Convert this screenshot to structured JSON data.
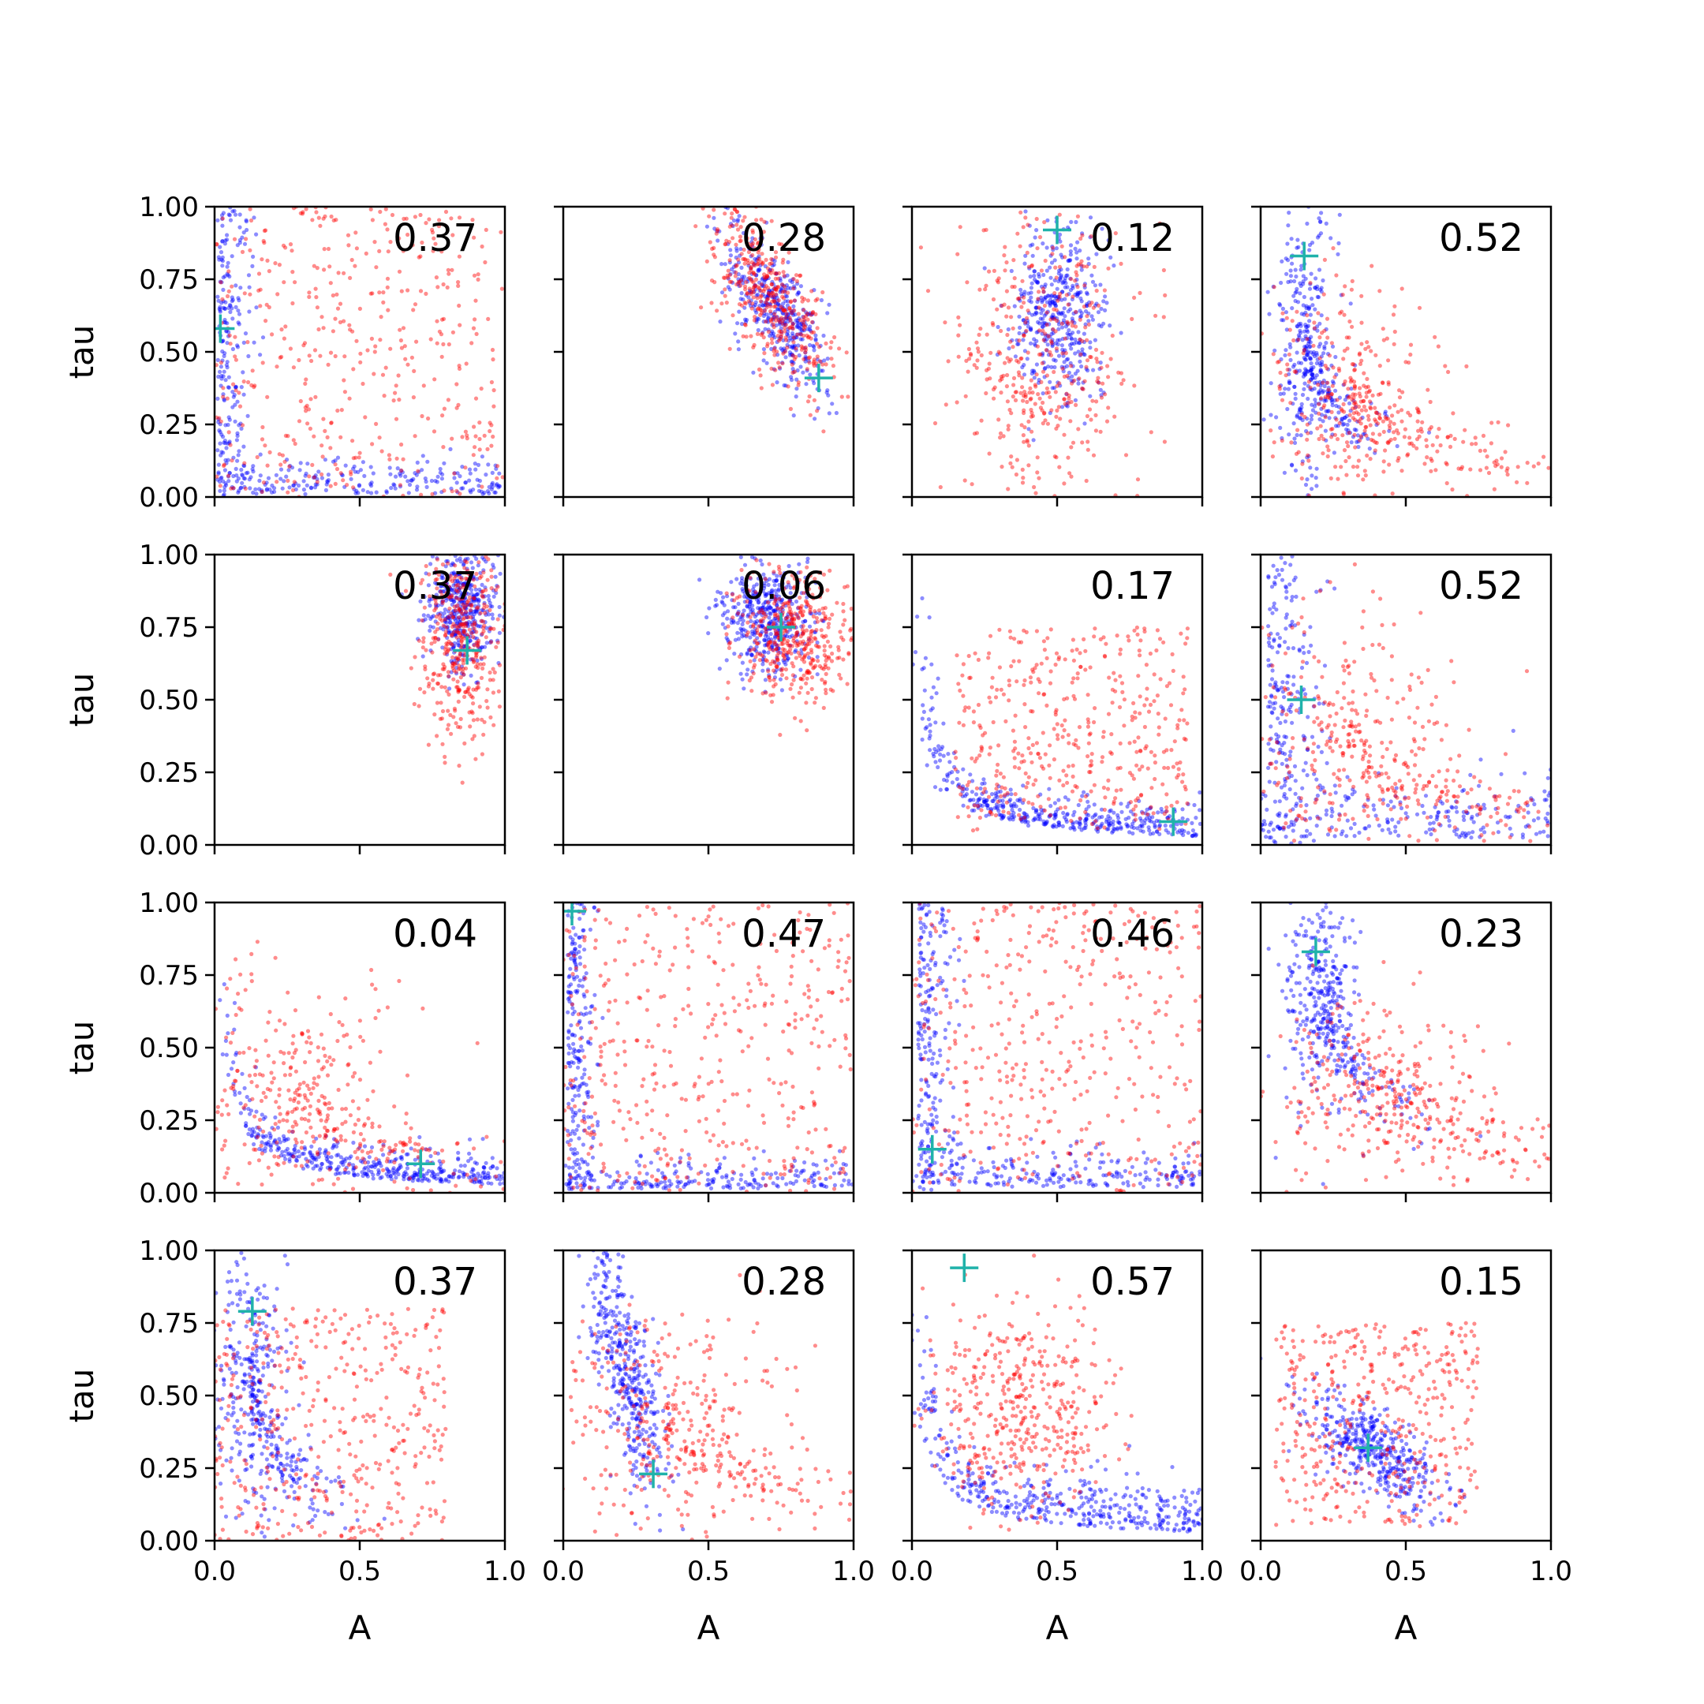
{
  "figure": {
    "x_label": "A",
    "y_label": "tau",
    "x_ticks": [
      "0.0",
      "0.5",
      "1.0"
    ],
    "y_ticks": [
      "0.00",
      "0.25",
      "0.50",
      "0.75",
      "1.00"
    ],
    "colors": {
      "series_a": "#0000ff",
      "series_b": "#ff0000",
      "marker": "#20b2aa"
    }
  },
  "chart_data": [
    {
      "type": "scatter",
      "row": 0,
      "col": 0,
      "annotation": "0.37",
      "xlim": [
        0,
        1
      ],
      "ylim": [
        0,
        1
      ],
      "marker": {
        "x": 0.02,
        "y": 0.58
      },
      "series": [
        {
          "color": "#0000ff",
          "shape": "L",
          "center": [
            0.02,
            0.02
          ],
          "spread": [
            0.06,
            0.06
          ]
        },
        {
          "color": "#ff0000",
          "shape": "uniform",
          "center": [
            0.5,
            0.5
          ],
          "spread": [
            0.5,
            0.5
          ]
        }
      ]
    },
    {
      "type": "scatter",
      "row": 0,
      "col": 1,
      "annotation": "0.28",
      "xlim": [
        0,
        1
      ],
      "ylim": [
        0,
        1
      ],
      "marker": {
        "x": 0.88,
        "y": 0.41
      },
      "series": [
        {
          "color": "#0000ff",
          "shape": "tilted",
          "center": [
            0.73,
            0.65
          ],
          "spread": [
            0.09,
            0.14
          ]
        },
        {
          "color": "#ff0000",
          "shape": "tilted",
          "center": [
            0.72,
            0.68
          ],
          "spread": [
            0.11,
            0.17
          ]
        }
      ]
    },
    {
      "type": "scatter",
      "row": 0,
      "col": 2,
      "annotation": "0.12",
      "xlim": [
        0,
        1
      ],
      "ylim": [
        0,
        1
      ],
      "marker": {
        "x": 0.5,
        "y": 0.92
      },
      "series": [
        {
          "color": "#0000ff",
          "shape": "blob",
          "center": [
            0.5,
            0.62
          ],
          "spread": [
            0.08,
            0.14
          ]
        },
        {
          "color": "#ff0000",
          "shape": "blob",
          "center": [
            0.45,
            0.45
          ],
          "spread": [
            0.15,
            0.25
          ]
        }
      ]
    },
    {
      "type": "scatter",
      "row": 0,
      "col": 3,
      "annotation": "0.52",
      "xlim": [
        0,
        1
      ],
      "ylim": [
        0,
        1
      ],
      "marker": {
        "x": 0.15,
        "y": 0.83
      },
      "series": [
        {
          "color": "#0000ff",
          "shape": "curve",
          "center": [
            0.15,
            0.55
          ],
          "spread": [
            0.05,
            0.25
          ]
        },
        {
          "color": "#ff0000",
          "shape": "curve",
          "center": [
            0.3,
            0.35
          ],
          "spread": [
            0.15,
            0.2
          ]
        }
      ]
    },
    {
      "type": "scatter",
      "row": 1,
      "col": 0,
      "annotation": "0.37",
      "xlim": [
        0,
        1
      ],
      "ylim": [
        0,
        1
      ],
      "marker": {
        "x": 0.87,
        "y": 0.67
      },
      "series": [
        {
          "color": "#0000ff",
          "shape": "blob",
          "center": [
            0.85,
            0.82
          ],
          "spread": [
            0.06,
            0.1
          ]
        },
        {
          "color": "#ff0000",
          "shape": "blob",
          "center": [
            0.85,
            0.72
          ],
          "spread": [
            0.07,
            0.18
          ]
        }
      ]
    },
    {
      "type": "scatter",
      "row": 1,
      "col": 1,
      "annotation": "0.06",
      "xlim": [
        0,
        1
      ],
      "ylim": [
        0,
        1
      ],
      "marker": {
        "x": 0.75,
        "y": 0.75
      },
      "series": [
        {
          "color": "#0000ff",
          "shape": "blob",
          "center": [
            0.7,
            0.78
          ],
          "spread": [
            0.08,
            0.1
          ]
        },
        {
          "color": "#ff0000",
          "shape": "blob",
          "center": [
            0.8,
            0.72
          ],
          "spread": [
            0.1,
            0.12
          ]
        }
      ]
    },
    {
      "type": "scatter",
      "row": 1,
      "col": 2,
      "annotation": "0.17",
      "xlim": [
        0,
        1
      ],
      "ylim": [
        0,
        1
      ],
      "marker": {
        "x": 0.9,
        "y": 0.08
      },
      "series": [
        {
          "color": "#0000ff",
          "shape": "hyper",
          "center": [
            0.4,
            0.18
          ],
          "spread": [
            0.3,
            0.05
          ]
        },
        {
          "color": "#ff0000",
          "shape": "uniform",
          "center": [
            0.55,
            0.4
          ],
          "spread": [
            0.4,
            0.35
          ]
        }
      ]
    },
    {
      "type": "scatter",
      "row": 1,
      "col": 3,
      "annotation": "0.52",
      "xlim": [
        0,
        1
      ],
      "ylim": [
        0,
        1
      ],
      "marker": {
        "x": 0.14,
        "y": 0.5
      },
      "series": [
        {
          "color": "#0000ff",
          "shape": "L",
          "center": [
            0.05,
            0.05
          ],
          "spread": [
            0.08,
            0.1
          ]
        },
        {
          "color": "#ff0000",
          "shape": "curve",
          "center": [
            0.3,
            0.35
          ],
          "spread": [
            0.2,
            0.2
          ]
        }
      ]
    },
    {
      "type": "scatter",
      "row": 2,
      "col": 0,
      "annotation": "0.04",
      "xlim": [
        0,
        1
      ],
      "ylim": [
        0,
        1
      ],
      "marker": {
        "x": 0.71,
        "y": 0.1
      },
      "series": [
        {
          "color": "#0000ff",
          "shape": "hyper",
          "center": [
            0.6,
            0.12
          ],
          "spread": [
            0.3,
            0.05
          ]
        },
        {
          "color": "#ff0000",
          "shape": "curve",
          "center": [
            0.25,
            0.35
          ],
          "spread": [
            0.2,
            0.2
          ]
        }
      ]
    },
    {
      "type": "scatter",
      "row": 2,
      "col": 1,
      "annotation": "0.47",
      "xlim": [
        0,
        1
      ],
      "ylim": [
        0,
        1
      ],
      "marker": {
        "x": 0.03,
        "y": 0.97
      },
      "series": [
        {
          "color": "#0000ff",
          "shape": "L",
          "center": [
            0.03,
            0.03
          ],
          "spread": [
            0.05,
            0.05
          ]
        },
        {
          "color": "#ff0000",
          "shape": "uniform",
          "center": [
            0.5,
            0.5
          ],
          "spread": [
            0.5,
            0.5
          ]
        }
      ]
    },
    {
      "type": "scatter",
      "row": 2,
      "col": 2,
      "annotation": "0.46",
      "xlim": [
        0,
        1
      ],
      "ylim": [
        0,
        1
      ],
      "marker": {
        "x": 0.07,
        "y": 0.15
      },
      "series": [
        {
          "color": "#0000ff",
          "shape": "L",
          "center": [
            0.04,
            0.04
          ],
          "spread": [
            0.06,
            0.06
          ]
        },
        {
          "color": "#ff0000",
          "shape": "uniform",
          "center": [
            0.5,
            0.5
          ],
          "spread": [
            0.5,
            0.5
          ]
        }
      ]
    },
    {
      "type": "scatter",
      "row": 2,
      "col": 3,
      "annotation": "0.23",
      "xlim": [
        0,
        1
      ],
      "ylim": [
        0,
        1
      ],
      "marker": {
        "x": 0.19,
        "y": 0.83
      },
      "series": [
        {
          "color": "#0000ff",
          "shape": "curve",
          "center": [
            0.2,
            0.7
          ],
          "spread": [
            0.07,
            0.2
          ]
        },
        {
          "color": "#ff0000",
          "shape": "curve",
          "center": [
            0.4,
            0.35
          ],
          "spread": [
            0.2,
            0.15
          ]
        }
      ]
    },
    {
      "type": "scatter",
      "row": 3,
      "col": 0,
      "annotation": "0.37",
      "xlim": [
        0,
        1
      ],
      "ylim": [
        0,
        1
      ],
      "marker": {
        "x": 0.13,
        "y": 0.79
      },
      "series": [
        {
          "color": "#0000ff",
          "shape": "curve",
          "center": [
            0.12,
            0.55
          ],
          "spread": [
            0.06,
            0.25
          ]
        },
        {
          "color": "#ff0000",
          "shape": "uniform",
          "center": [
            0.4,
            0.4
          ],
          "spread": [
            0.4,
            0.4
          ]
        }
      ]
    },
    {
      "type": "scatter",
      "row": 3,
      "col": 1,
      "annotation": "0.28",
      "xlim": [
        0,
        1
      ],
      "ylim": [
        0,
        1
      ],
      "marker": {
        "x": 0.31,
        "y": 0.23
      },
      "series": [
        {
          "color": "#0000ff",
          "shape": "tilted",
          "center": [
            0.22,
            0.6
          ],
          "spread": [
            0.07,
            0.22
          ]
        },
        {
          "color": "#ff0000",
          "shape": "curve",
          "center": [
            0.35,
            0.4
          ],
          "spread": [
            0.2,
            0.2
          ]
        }
      ]
    },
    {
      "type": "scatter",
      "row": 3,
      "col": 2,
      "annotation": "0.57",
      "xlim": [
        0,
        1
      ],
      "ylim": [
        0,
        1
      ],
      "marker": {
        "x": 0.18,
        "y": 0.94
      },
      "series": [
        {
          "color": "#0000ff",
          "shape": "hyper",
          "center": [
            0.35,
            0.3
          ],
          "spread": [
            0.25,
            0.08
          ]
        },
        {
          "color": "#ff0000",
          "shape": "blob",
          "center": [
            0.35,
            0.45
          ],
          "spread": [
            0.15,
            0.18
          ]
        }
      ]
    },
    {
      "type": "scatter",
      "row": 3,
      "col": 3,
      "annotation": "0.15",
      "xlim": [
        0,
        1
      ],
      "ylim": [
        0,
        1
      ],
      "marker": {
        "x": 0.37,
        "y": 0.32
      },
      "series": [
        {
          "color": "#0000ff",
          "shape": "tilted",
          "center": [
            0.38,
            0.32
          ],
          "spread": [
            0.12,
            0.1
          ]
        },
        {
          "color": "#ff0000",
          "shape": "uniform",
          "center": [
            0.4,
            0.4
          ],
          "spread": [
            0.35,
            0.35
          ]
        }
      ]
    }
  ]
}
